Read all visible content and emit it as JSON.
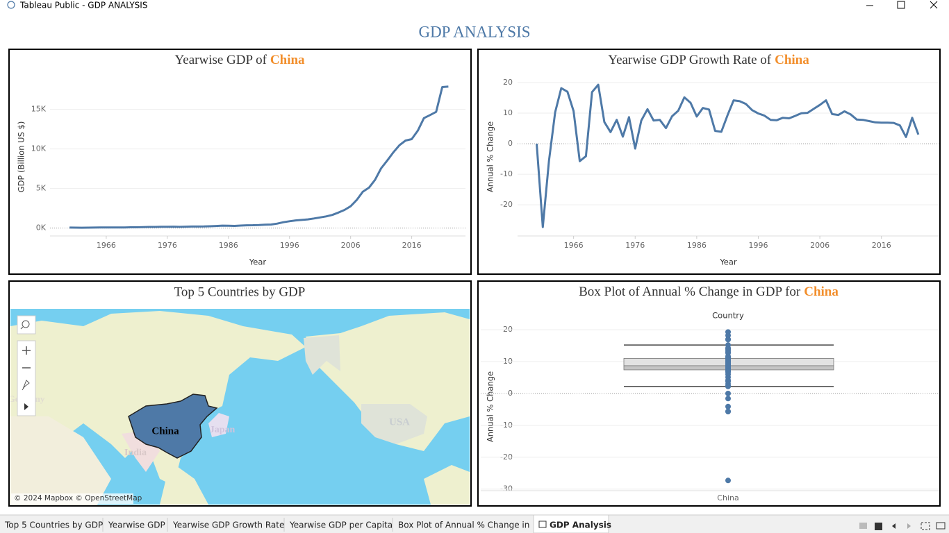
{
  "window": {
    "title": "Tableau Public - GDP ANALYSIS"
  },
  "dashboard": {
    "title": "GDP ANALYSIS"
  },
  "chart_data": [
    {
      "type": "line",
      "title": "Yearwise GDP of",
      "title_highlight": "China",
      "x_label": "Year",
      "y_label": "GDP (Billion US $)",
      "color": "#4e79a7",
      "highlight_color": "#f28e2b",
      "x": [
        1960,
        1961,
        1962,
        1963,
        1964,
        1965,
        1966,
        1967,
        1968,
        1969,
        1970,
        1971,
        1972,
        1973,
        1974,
        1975,
        1976,
        1977,
        1978,
        1979,
        1980,
        1981,
        1982,
        1983,
        1984,
        1985,
        1986,
        1987,
        1988,
        1989,
        1990,
        1991,
        1992,
        1993,
        1994,
        1995,
        1996,
        1997,
        1998,
        1999,
        2000,
        2001,
        2002,
        2003,
        2004,
        2005,
        2006,
        2007,
        2008,
        2009,
        2010,
        2011,
        2012,
        2013,
        2014,
        2015,
        2016,
        2017,
        2018,
        2019,
        2020,
        2021,
        2022
      ],
      "values": [
        59.7,
        50.1,
        47.2,
        50.7,
        59.7,
        70.4,
        76.7,
        72.9,
        70.8,
        79.7,
        92.6,
        99.8,
        113.7,
        138.5,
        144.2,
        163.4,
        153.9,
        174.9,
        149.5,
        178.3,
        191.1,
        195.9,
        205.1,
        230.7,
        259.9,
        309.5,
        300.8,
        272.9,
        312.4,
        347.8,
        360.9,
        383.4,
        426.9,
        444.7,
        564.3,
        734.5,
        863.7,
        961.6,
        1029,
        1094,
        1211,
        1339,
        1471,
        1660,
        1955,
        2286,
        2752,
        3550,
        4594,
        5102,
        6087,
        7552,
        8532,
        9570,
        10476,
        11062,
        11233,
        12310,
        13895,
        14280,
        14688,
        17820,
        17882
      ],
      "xlim": [
        1956.8,
        2024.8
      ],
      "ylim": [
        -1000,
        19000
      ],
      "xticks": [
        1966,
        1976,
        1986,
        1996,
        2006,
        2016
      ],
      "yticks": [
        {
          "value": 0,
          "label": "0K"
        },
        {
          "value": 5000,
          "label": "5K"
        },
        {
          "value": 10000,
          "label": "10K"
        },
        {
          "value": 15000,
          "label": "15K"
        }
      ],
      "grid": true
    },
    {
      "type": "line",
      "title": "Yearwise GDP Growth Rate of",
      "title_highlight": "China",
      "x_label": "Year",
      "y_label": "Annual % Change",
      "color": "#4e79a7",
      "highlight_color": "#f28e2b",
      "x": [
        1960,
        1961,
        1962,
        1963,
        1964,
        1965,
        1966,
        1967,
        1968,
        1969,
        1970,
        1971,
        1972,
        1973,
        1974,
        1975,
        1976,
        1977,
        1978,
        1979,
        1980,
        1981,
        1982,
        1983,
        1984,
        1985,
        1986,
        1987,
        1988,
        1989,
        1990,
        1991,
        1992,
        1993,
        1994,
        1995,
        1996,
        1997,
        1998,
        1999,
        2000,
        2001,
        2002,
        2003,
        2004,
        2005,
        2006,
        2007,
        2008,
        2009,
        2010,
        2011,
        2012,
        2013,
        2014,
        2015,
        2016,
        2017,
        2018,
        2019,
        2020,
        2021,
        2022
      ],
      "values": [
        0,
        -27.3,
        -5.6,
        10.3,
        18.2,
        17.0,
        10.7,
        -5.7,
        -4.1,
        16.9,
        19.3,
        7.1,
        3.8,
        7.8,
        2.3,
        8.7,
        -1.6,
        7.6,
        11.3,
        7.6,
        7.8,
        5.1,
        9.0,
        10.8,
        15.2,
        13.4,
        8.9,
        11.7,
        11.2,
        4.2,
        3.9,
        9.3,
        14.2,
        13.9,
        13.0,
        11.0,
        9.9,
        9.2,
        7.8,
        7.7,
        8.5,
        8.3,
        9.1,
        10.0,
        10.1,
        11.4,
        12.7,
        14.2,
        9.7,
        9.4,
        10.6,
        9.6,
        7.9,
        7.8,
        7.4,
        7.0,
        6.9,
        6.9,
        6.8,
        6.0,
        2.2,
        8.5,
        3.0
      ],
      "xlim": [
        1956.9,
        2025.4
      ],
      "ylim": [
        -30.2,
        21.6
      ],
      "xticks": [
        1966,
        1976,
        1986,
        1996,
        2006,
        2016
      ],
      "yticks": [
        20,
        10,
        0,
        -10,
        -20
      ],
      "grid": true
    },
    {
      "type": "box",
      "title": "Box Plot of Annual % Change in GDP for",
      "title_highlight": "China",
      "x_label": "Country",
      "y_label": "Annual % Change",
      "color": "#4e79a7",
      "highlight_color": "#f28e2b",
      "categories": [
        "China"
      ],
      "values": [
        0,
        -27.3,
        -5.6,
        10.3,
        18.2,
        17.0,
        10.7,
        -5.7,
        -4.1,
        16.9,
        19.3,
        7.1,
        3.8,
        7.8,
        2.3,
        8.7,
        -1.6,
        7.6,
        11.3,
        7.6,
        7.8,
        5.1,
        9.0,
        10.8,
        15.2,
        13.4,
        8.9,
        11.7,
        11.2,
        4.2,
        3.9,
        9.3,
        14.2,
        13.9,
        13.0,
        11.0,
        9.9,
        9.2,
        7.8,
        7.7,
        8.5,
        8.3,
        9.1,
        10.0,
        10.1,
        11.4,
        12.7,
        14.2,
        9.7,
        9.4,
        10.6,
        9.6,
        7.9,
        7.8,
        7.4,
        7.0,
        6.9,
        6.9,
        6.8,
        6.0,
        2.2,
        8.5,
        3.0
      ],
      "box": {
        "whisker_low": 2.2,
        "q1": 7.4,
        "median": 8.7,
        "q3": 11.0,
        "whisker_high": 15.2
      },
      "ylim": [
        -30.5,
        22.2
      ],
      "yticks": [
        20,
        10,
        0,
        -10,
        -20,
        -30
      ],
      "grid": true
    }
  ],
  "map": {
    "title": "Top 5 Countries by GDP",
    "labels": [
      "China",
      "India",
      "Japan",
      "USA",
      "Germany"
    ],
    "attribution": "© 2024 Mapbox © OpenStreetMap"
  },
  "tabs": [
    "Top 5 Countries by GDP",
    "Yearwise GDP",
    "Yearwise GDP Growth Rate",
    "Yearwise GDP per Capita",
    "Box Plot of Annual % Change in ...",
    "GDP Analysis"
  ]
}
